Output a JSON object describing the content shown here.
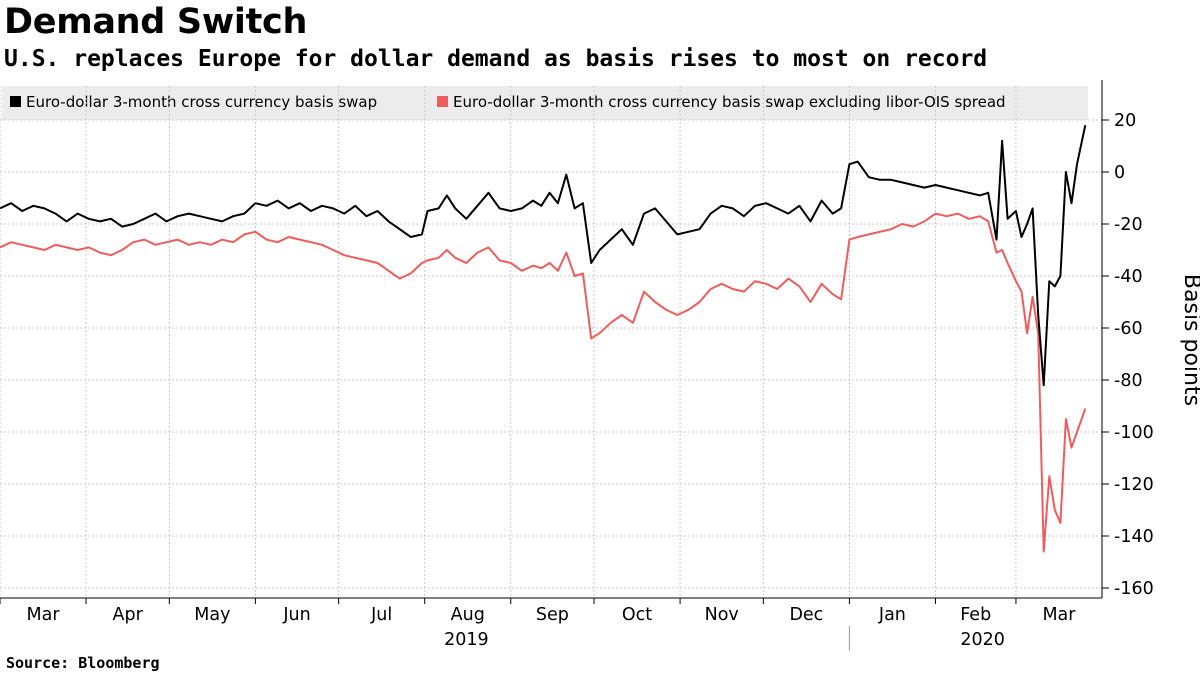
{
  "header": {
    "title": "Demand Switch",
    "subtitle": "U.S. replaces Europe for dollar demand as basis rises to most on record"
  },
  "footer": {
    "source": "Source: Bloomberg"
  },
  "colors": {
    "series_black": "#000000",
    "series_red": "#f05c5c",
    "legend_bg": "#ececec",
    "grid": "#c8c8c8"
  },
  "chart_data": {
    "type": "line",
    "title": "Demand Switch",
    "subtitle": "U.S. replaces Europe for dollar demand as basis rises to most on record",
    "ylabel": "Basis points",
    "ylim": [
      -165,
      33
    ],
    "yticks": [
      20,
      0,
      -20,
      -40,
      -60,
      -80,
      -100,
      -120,
      -140,
      -160
    ],
    "ytick_labels": [
      "20",
      "0",
      "-20",
      "-40",
      "-60",
      "-80",
      "-100",
      "-120",
      "-140",
      "-160"
    ],
    "xlim": [
      "2019-03-01",
      "2020-03-31"
    ],
    "x_months": [
      {
        "label": "Mar",
        "date": "2019-03-01"
      },
      {
        "label": "Apr",
        "date": "2019-04-01"
      },
      {
        "label": "May",
        "date": "2019-05-01"
      },
      {
        "label": "Jun",
        "date": "2019-06-01"
      },
      {
        "label": "Jul",
        "date": "2019-07-01"
      },
      {
        "label": "Aug",
        "date": "2019-08-01"
      },
      {
        "label": "Sep",
        "date": "2019-09-01"
      },
      {
        "label": "Oct",
        "date": "2019-10-01"
      },
      {
        "label": "Nov",
        "date": "2019-11-01"
      },
      {
        "label": "Dec",
        "date": "2019-12-01"
      },
      {
        "label": "Jan",
        "date": "2020-01-01"
      },
      {
        "label": "Feb",
        "date": "2020-02-01"
      },
      {
        "label": "Mar",
        "date": "2020-03-01"
      }
    ],
    "x_years": [
      {
        "label": "2019",
        "date": "2019-08-16"
      },
      {
        "label": "2020",
        "date": "2020-02-18"
      }
    ],
    "grid": true,
    "legend_position": "top",
    "series": [
      {
        "name": "Euro-dollar 3-month cross currency basis swap",
        "color": "#000000",
        "points": [
          [
            "2019-03-01",
            -14
          ],
          [
            "2019-03-05",
            -12
          ],
          [
            "2019-03-09",
            -15
          ],
          [
            "2019-03-13",
            -13
          ],
          [
            "2019-03-17",
            -14
          ],
          [
            "2019-03-21",
            -16
          ],
          [
            "2019-03-25",
            -19
          ],
          [
            "2019-03-29",
            -16
          ],
          [
            "2019-04-02",
            -18
          ],
          [
            "2019-04-06",
            -19
          ],
          [
            "2019-04-10",
            -18
          ],
          [
            "2019-04-14",
            -21
          ],
          [
            "2019-04-18",
            -20
          ],
          [
            "2019-04-22",
            -18
          ],
          [
            "2019-04-26",
            -16
          ],
          [
            "2019-04-30",
            -19
          ],
          [
            "2019-05-04",
            -17
          ],
          [
            "2019-05-08",
            -16
          ],
          [
            "2019-05-12",
            -17
          ],
          [
            "2019-05-16",
            -18
          ],
          [
            "2019-05-20",
            -19
          ],
          [
            "2019-05-24",
            -17
          ],
          [
            "2019-05-28",
            -16
          ],
          [
            "2019-06-01",
            -12
          ],
          [
            "2019-06-05",
            -13
          ],
          [
            "2019-06-09",
            -11
          ],
          [
            "2019-06-13",
            -14
          ],
          [
            "2019-06-17",
            -12
          ],
          [
            "2019-06-21",
            -15
          ],
          [
            "2019-06-25",
            -13
          ],
          [
            "2019-06-29",
            -14
          ],
          [
            "2019-07-03",
            -16
          ],
          [
            "2019-07-07",
            -13
          ],
          [
            "2019-07-11",
            -17
          ],
          [
            "2019-07-15",
            -15
          ],
          [
            "2019-07-19",
            -19
          ],
          [
            "2019-07-23",
            -22
          ],
          [
            "2019-07-27",
            -25
          ],
          [
            "2019-07-31",
            -24
          ],
          [
            "2019-08-02",
            -15
          ],
          [
            "2019-08-06",
            -14
          ],
          [
            "2019-08-09",
            -9
          ],
          [
            "2019-08-12",
            -14
          ],
          [
            "2019-08-16",
            -18
          ],
          [
            "2019-08-20",
            -13
          ],
          [
            "2019-08-24",
            -8
          ],
          [
            "2019-08-28",
            -14
          ],
          [
            "2019-09-01",
            -15
          ],
          [
            "2019-09-05",
            -14
          ],
          [
            "2019-09-09",
            -11
          ],
          [
            "2019-09-12",
            -13
          ],
          [
            "2019-09-15",
            -8
          ],
          [
            "2019-09-18",
            -12
          ],
          [
            "2019-09-21",
            -1
          ],
          [
            "2019-09-24",
            -14
          ],
          [
            "2019-09-27",
            -12
          ],
          [
            "2019-09-30",
            -35
          ],
          [
            "2019-10-03",
            -30
          ],
          [
            "2019-10-07",
            -26
          ],
          [
            "2019-10-11",
            -22
          ],
          [
            "2019-10-15",
            -28
          ],
          [
            "2019-10-19",
            -16
          ],
          [
            "2019-10-23",
            -14
          ],
          [
            "2019-10-27",
            -19
          ],
          [
            "2019-10-31",
            -24
          ],
          [
            "2019-11-04",
            -23
          ],
          [
            "2019-11-08",
            -22
          ],
          [
            "2019-11-12",
            -16
          ],
          [
            "2019-11-16",
            -13
          ],
          [
            "2019-11-20",
            -14
          ],
          [
            "2019-11-24",
            -17
          ],
          [
            "2019-11-28",
            -13
          ],
          [
            "2019-12-02",
            -12
          ],
          [
            "2019-12-06",
            -14
          ],
          [
            "2019-12-10",
            -16
          ],
          [
            "2019-12-14",
            -13
          ],
          [
            "2019-12-18",
            -19
          ],
          [
            "2019-12-22",
            -11
          ],
          [
            "2019-12-26",
            -16
          ],
          [
            "2019-12-29",
            -14
          ],
          [
            "2020-01-01",
            3
          ],
          [
            "2020-01-04",
            4
          ],
          [
            "2020-01-08",
            -2
          ],
          [
            "2020-01-12",
            -3
          ],
          [
            "2020-01-16",
            -3
          ],
          [
            "2020-01-20",
            -4
          ],
          [
            "2020-01-24",
            -5
          ],
          [
            "2020-01-28",
            -6
          ],
          [
            "2020-02-01",
            -5
          ],
          [
            "2020-02-05",
            -6
          ],
          [
            "2020-02-09",
            -7
          ],
          [
            "2020-02-13",
            -8
          ],
          [
            "2020-02-17",
            -9
          ],
          [
            "2020-02-20",
            -8
          ],
          [
            "2020-02-23",
            -26
          ],
          [
            "2020-02-25",
            12
          ],
          [
            "2020-02-27",
            -18
          ],
          [
            "2020-03-01",
            -15
          ],
          [
            "2020-03-03",
            -25
          ],
          [
            "2020-03-05",
            -20
          ],
          [
            "2020-03-07",
            -14
          ],
          [
            "2020-03-09",
            -55
          ],
          [
            "2020-03-11",
            -82
          ],
          [
            "2020-03-13",
            -42
          ],
          [
            "2020-03-15",
            -44
          ],
          [
            "2020-03-17",
            -40
          ],
          [
            "2020-03-19",
            0
          ],
          [
            "2020-03-21",
            -12
          ],
          [
            "2020-03-23",
            3
          ],
          [
            "2020-03-26",
            18
          ]
        ]
      },
      {
        "name": "Euro-dollar 3-month cross currency basis swap excluding libor-OIS spread",
        "color": "#f05c5c",
        "points": [
          [
            "2019-03-01",
            -29
          ],
          [
            "2019-03-05",
            -27
          ],
          [
            "2019-03-09",
            -28
          ],
          [
            "2019-03-13",
            -29
          ],
          [
            "2019-03-17",
            -30
          ],
          [
            "2019-03-21",
            -28
          ],
          [
            "2019-03-25",
            -29
          ],
          [
            "2019-03-29",
            -30
          ],
          [
            "2019-04-02",
            -29
          ],
          [
            "2019-04-06",
            -31
          ],
          [
            "2019-04-10",
            -32
          ],
          [
            "2019-04-14",
            -30
          ],
          [
            "2019-04-18",
            -27
          ],
          [
            "2019-04-22",
            -26
          ],
          [
            "2019-04-26",
            -28
          ],
          [
            "2019-04-30",
            -27
          ],
          [
            "2019-05-04",
            -26
          ],
          [
            "2019-05-08",
            -28
          ],
          [
            "2019-05-12",
            -27
          ],
          [
            "2019-05-16",
            -28
          ],
          [
            "2019-05-20",
            -26
          ],
          [
            "2019-05-24",
            -27
          ],
          [
            "2019-05-28",
            -24
          ],
          [
            "2019-06-01",
            -23
          ],
          [
            "2019-06-05",
            -26
          ],
          [
            "2019-06-09",
            -27
          ],
          [
            "2019-06-13",
            -25
          ],
          [
            "2019-06-17",
            -26
          ],
          [
            "2019-06-21",
            -27
          ],
          [
            "2019-06-25",
            -28
          ],
          [
            "2019-06-29",
            -30
          ],
          [
            "2019-07-03",
            -32
          ],
          [
            "2019-07-07",
            -33
          ],
          [
            "2019-07-11",
            -34
          ],
          [
            "2019-07-15",
            -35
          ],
          [
            "2019-07-19",
            -38
          ],
          [
            "2019-07-23",
            -41
          ],
          [
            "2019-07-27",
            -39
          ],
          [
            "2019-07-31",
            -35
          ],
          [
            "2019-08-02",
            -34
          ],
          [
            "2019-08-06",
            -33
          ],
          [
            "2019-08-09",
            -30
          ],
          [
            "2019-08-12",
            -33
          ],
          [
            "2019-08-16",
            -35
          ],
          [
            "2019-08-20",
            -31
          ],
          [
            "2019-08-24",
            -29
          ],
          [
            "2019-08-28",
            -34
          ],
          [
            "2019-09-01",
            -35
          ],
          [
            "2019-09-05",
            -38
          ],
          [
            "2019-09-09",
            -36
          ],
          [
            "2019-09-12",
            -37
          ],
          [
            "2019-09-15",
            -35
          ],
          [
            "2019-09-18",
            -38
          ],
          [
            "2019-09-21",
            -31
          ],
          [
            "2019-09-24",
            -40
          ],
          [
            "2019-09-27",
            -39
          ],
          [
            "2019-09-30",
            -64
          ],
          [
            "2019-10-03",
            -62
          ],
          [
            "2019-10-07",
            -58
          ],
          [
            "2019-10-11",
            -55
          ],
          [
            "2019-10-15",
            -58
          ],
          [
            "2019-10-19",
            -46
          ],
          [
            "2019-10-23",
            -50
          ],
          [
            "2019-10-27",
            -53
          ],
          [
            "2019-10-31",
            -55
          ],
          [
            "2019-11-04",
            -53
          ],
          [
            "2019-11-08",
            -50
          ],
          [
            "2019-11-12",
            -45
          ],
          [
            "2019-11-16",
            -43
          ],
          [
            "2019-11-20",
            -45
          ],
          [
            "2019-11-24",
            -46
          ],
          [
            "2019-11-28",
            -42
          ],
          [
            "2019-12-02",
            -43
          ],
          [
            "2019-12-06",
            -45
          ],
          [
            "2019-12-10",
            -41
          ],
          [
            "2019-12-14",
            -44
          ],
          [
            "2019-12-18",
            -50
          ],
          [
            "2019-12-22",
            -43
          ],
          [
            "2019-12-26",
            -47
          ],
          [
            "2019-12-29",
            -49
          ],
          [
            "2020-01-01",
            -26
          ],
          [
            "2020-01-04",
            -25
          ],
          [
            "2020-01-08",
            -24
          ],
          [
            "2020-01-12",
            -23
          ],
          [
            "2020-01-16",
            -22
          ],
          [
            "2020-01-20",
            -20
          ],
          [
            "2020-01-24",
            -21
          ],
          [
            "2020-01-28",
            -19
          ],
          [
            "2020-02-01",
            -16
          ],
          [
            "2020-02-05",
            -17
          ],
          [
            "2020-02-09",
            -16
          ],
          [
            "2020-02-13",
            -18
          ],
          [
            "2020-02-17",
            -17
          ],
          [
            "2020-02-20",
            -19
          ],
          [
            "2020-02-23",
            -31
          ],
          [
            "2020-02-25",
            -30
          ],
          [
            "2020-02-27",
            -35
          ],
          [
            "2020-03-01",
            -42
          ],
          [
            "2020-03-03",
            -46
          ],
          [
            "2020-03-05",
            -62
          ],
          [
            "2020-03-07",
            -48
          ],
          [
            "2020-03-09",
            -62
          ],
          [
            "2020-03-11",
            -146
          ],
          [
            "2020-03-13",
            -117
          ],
          [
            "2020-03-15",
            -130
          ],
          [
            "2020-03-17",
            -135
          ],
          [
            "2020-03-19",
            -95
          ],
          [
            "2020-03-21",
            -106
          ],
          [
            "2020-03-23",
            -100
          ],
          [
            "2020-03-26",
            -91
          ]
        ]
      }
    ]
  }
}
